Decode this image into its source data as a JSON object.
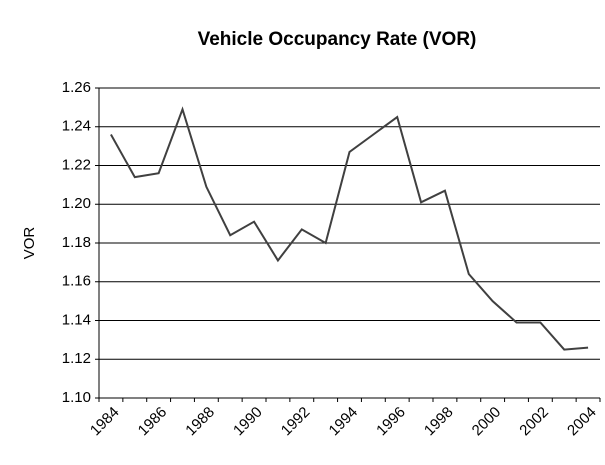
{
  "chart_data": {
    "type": "line",
    "title": "Vehicle Occupancy Rate (VOR)",
    "y_label": "VOR",
    "categories": [
      "1984",
      null,
      "1986",
      null,
      "1988",
      null,
      "1990",
      null,
      "1992",
      null,
      "1994",
      null,
      "1996",
      null,
      "1998",
      null,
      "2000",
      null,
      "2002",
      null,
      "2004"
    ],
    "series": [
      {
        "name": "VOR",
        "color": "#404040",
        "values": [
          1.236,
          1.214,
          1.216,
          1.249,
          1.209,
          1.184,
          1.191,
          1.171,
          1.187,
          1.18,
          1.227,
          1.236,
          1.245,
          1.201,
          1.207,
          1.164,
          1.15,
          1.139,
          1.139,
          1.125,
          1.126
        ]
      }
    ],
    "ylim": [
      1.1,
      1.26
    ],
    "yticks": [
      {
        "value": 1.1,
        "label": "1.10"
      },
      1.12,
      1.14,
      1.16,
      1.18,
      {
        "value": 1.2,
        "label": "1.20"
      },
      1.22,
      1.24,
      1.26
    ],
    "grid": true
  }
}
